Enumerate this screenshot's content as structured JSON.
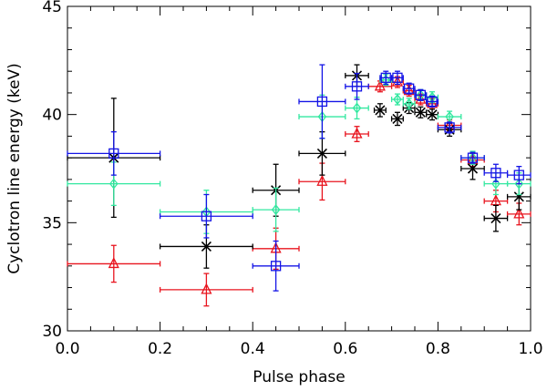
{
  "chart_data": {
    "type": "scatter",
    "xlabel": "Pulse phase",
    "ylabel": "Cyclotron line energy (keV)",
    "xlim": [
      0.0,
      1.0
    ],
    "ylim": [
      30,
      45
    ],
    "x_ticks": [
      "0.0",
      "0.2",
      "0.4",
      "0.6",
      "0.8",
      "1.0"
    ],
    "y_ticks": [
      "30",
      "35",
      "40",
      "45"
    ],
    "series": [
      {
        "name": "red triangles",
        "color": "#e8141e",
        "marker": "triangle",
        "points": [
          {
            "x": 0.1,
            "y": 33.1,
            "xerr": 0.1,
            "yerr": 0.85
          },
          {
            "x": 0.3,
            "y": 31.9,
            "xerr": 0.1,
            "yerr": 0.75
          },
          {
            "x": 0.45,
            "y": 33.8,
            "xerr": 0.05,
            "yerr": 0.95
          },
          {
            "x": 0.55,
            "y": 36.9,
            "xerr": 0.05,
            "yerr": 0.85
          },
          {
            "x": 0.625,
            "y": 39.1,
            "xerr": 0.025,
            "yerr": 0.35
          },
          {
            "x": 0.675,
            "y": 41.3,
            "xerr": 0.025,
            "yerr": 0.25
          },
          {
            "x": 0.7125,
            "y": 41.5,
            "xerr": 0.0125,
            "yerr": 0.25
          },
          {
            "x": 0.7375,
            "y": 41.1,
            "xerr": 0.0125,
            "yerr": 0.25
          },
          {
            "x": 0.7625,
            "y": 40.7,
            "xerr": 0.0125,
            "yerr": 0.25
          },
          {
            "x": 0.7875,
            "y": 40.5,
            "xerr": 0.0125,
            "yerr": 0.25
          },
          {
            "x": 0.825,
            "y": 39.5,
            "xerr": 0.025,
            "yerr": 0.25
          },
          {
            "x": 0.875,
            "y": 37.9,
            "xerr": 0.025,
            "yerr": 0.3
          },
          {
            "x": 0.925,
            "y": 36.0,
            "xerr": 0.025,
            "yerr": 0.5
          },
          {
            "x": 0.975,
            "y": 35.4,
            "xerr": 0.025,
            "yerr": 0.5
          }
        ]
      },
      {
        "name": "black crosses",
        "color": "#000000",
        "marker": "asterisk",
        "points": [
          {
            "x": 0.1,
            "y": 38.0,
            "xerr": 0.1,
            "yerr": 2.75
          },
          {
            "x": 0.3,
            "y": 33.9,
            "xerr": 0.1,
            "yerr": 1.0
          },
          {
            "x": 0.45,
            "y": 36.5,
            "xerr": 0.05,
            "yerr": 1.2
          },
          {
            "x": 0.55,
            "y": 38.2,
            "xerr": 0.05,
            "yerr": 1.0
          },
          {
            "x": 0.625,
            "y": 41.8,
            "xerr": 0.025,
            "yerr": 0.5
          },
          {
            "x": 0.675,
            "y": 40.2,
            "xerr": 0.0125,
            "yerr": 0.3
          },
          {
            "x": 0.7125,
            "y": 39.8,
            "xerr": 0.0125,
            "yerr": 0.3
          },
          {
            "x": 0.7375,
            "y": 40.3,
            "xerr": 0.0125,
            "yerr": 0.25
          },
          {
            "x": 0.7625,
            "y": 40.1,
            "xerr": 0.0125,
            "yerr": 0.25
          },
          {
            "x": 0.7875,
            "y": 40.0,
            "xerr": 0.0125,
            "yerr": 0.25
          },
          {
            "x": 0.825,
            "y": 39.3,
            "xerr": 0.025,
            "yerr": 0.3
          },
          {
            "x": 0.875,
            "y": 37.5,
            "xerr": 0.025,
            "yerr": 0.5
          },
          {
            "x": 0.925,
            "y": 35.2,
            "xerr": 0.025,
            "yerr": 0.6
          },
          {
            "x": 0.975,
            "y": 36.2,
            "xerr": 0.025,
            "yerr": 0.6
          }
        ]
      },
      {
        "name": "green diamonds",
        "color": "#33e8a0",
        "marker": "diamond",
        "points": [
          {
            "x": 0.1,
            "y": 36.8,
            "xerr": 0.1,
            "yerr": 1.0
          },
          {
            "x": 0.3,
            "y": 35.5,
            "xerr": 0.1,
            "yerr": 1.0
          },
          {
            "x": 0.45,
            "y": 35.6,
            "xerr": 0.05,
            "yerr": 1.0
          },
          {
            "x": 0.55,
            "y": 39.9,
            "xerr": 0.05,
            "yerr": 1.0
          },
          {
            "x": 0.625,
            "y": 40.3,
            "xerr": 0.025,
            "yerr": 0.5
          },
          {
            "x": 0.6875,
            "y": 41.6,
            "xerr": 0.0125,
            "yerr": 0.25
          },
          {
            "x": 0.7125,
            "y": 40.7,
            "xerr": 0.0125,
            "yerr": 0.25
          },
          {
            "x": 0.7375,
            "y": 40.5,
            "xerr": 0.0125,
            "yerr": 0.25
          },
          {
            "x": 0.7625,
            "y": 40.9,
            "xerr": 0.0125,
            "yerr": 0.25
          },
          {
            "x": 0.7875,
            "y": 40.8,
            "xerr": 0.0125,
            "yerr": 0.25
          },
          {
            "x": 0.825,
            "y": 39.9,
            "xerr": 0.025,
            "yerr": 0.25
          },
          {
            "x": 0.875,
            "y": 38.0,
            "xerr": 0.025,
            "yerr": 0.3
          },
          {
            "x": 0.925,
            "y": 36.8,
            "xerr": 0.025,
            "yerr": 0.5
          },
          {
            "x": 0.975,
            "y": 36.8,
            "xerr": 0.025,
            "yerr": 0.5
          }
        ]
      },
      {
        "name": "blue squares",
        "color": "#1414e6",
        "marker": "square",
        "points": [
          {
            "x": 0.1,
            "y": 38.2,
            "xerr": 0.1,
            "yerr": 1.0
          },
          {
            "x": 0.3,
            "y": 35.3,
            "xerr": 0.1,
            "yerr": 1.0
          },
          {
            "x": 0.45,
            "y": 33.0,
            "xerr": 0.05,
            "yerr": 1.15
          },
          {
            "x": 0.55,
            "y": 40.6,
            "xerr": 0.05,
            "yerr": 1.7
          },
          {
            "x": 0.625,
            "y": 41.3,
            "xerr": 0.025,
            "yerr": 0.6
          },
          {
            "x": 0.6875,
            "y": 41.7,
            "xerr": 0.0125,
            "yerr": 0.3
          },
          {
            "x": 0.7125,
            "y": 41.7,
            "xerr": 0.0125,
            "yerr": 0.3
          },
          {
            "x": 0.7375,
            "y": 41.2,
            "xerr": 0.0125,
            "yerr": 0.25
          },
          {
            "x": 0.7625,
            "y": 40.9,
            "xerr": 0.0125,
            "yerr": 0.25
          },
          {
            "x": 0.7875,
            "y": 40.6,
            "xerr": 0.0125,
            "yerr": 0.25
          },
          {
            "x": 0.825,
            "y": 39.4,
            "xerr": 0.025,
            "yerr": 0.25
          },
          {
            "x": 0.875,
            "y": 38.0,
            "xerr": 0.025,
            "yerr": 0.25
          },
          {
            "x": 0.925,
            "y": 37.3,
            "xerr": 0.025,
            "yerr": 0.4
          },
          {
            "x": 0.975,
            "y": 37.2,
            "xerr": 0.025,
            "yerr": 0.4
          }
        ]
      }
    ]
  }
}
